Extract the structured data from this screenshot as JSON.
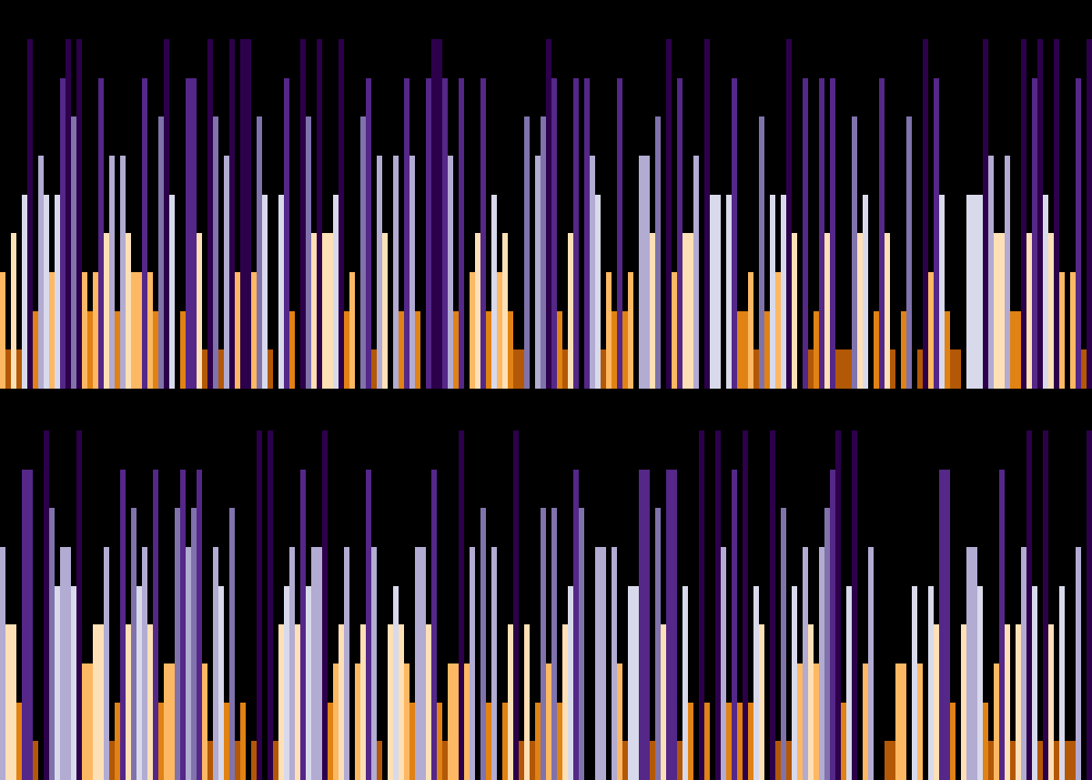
{
  "chart_data": {
    "type": "bar",
    "background": "#000000",
    "max_level": 9,
    "level_colors": [
      "#000000",
      "#b35806",
      "#e08214",
      "#fdb863",
      "#fee0b6",
      "#d8daeb",
      "#b2abd2",
      "#8073ac",
      "#542788",
      "#2d004b"
    ],
    "panels": [
      {
        "values": [
          3,
          1,
          4,
          1,
          5,
          9,
          2,
          6,
          5,
          3,
          5,
          8,
          9,
          7,
          9,
          3,
          2,
          3,
          8,
          4,
          6,
          2,
          6,
          4,
          3,
          3,
          8,
          3,
          2,
          7,
          9,
          5,
          0,
          2,
          8,
          8,
          4,
          1,
          9,
          7,
          1,
          6,
          9,
          3,
          9,
          9,
          3,
          7,
          5,
          1,
          0,
          5,
          8,
          2,
          0,
          9,
          7,
          4,
          9,
          4,
          4,
          5,
          9,
          2,
          3,
          0,
          7,
          8,
          1,
          6,
          4,
          0,
          6,
          2,
          8,
          6,
          2,
          0,
          8,
          9,
          9,
          8,
          6,
          2,
          8,
          0,
          3,
          4,
          8,
          2,
          5,
          3,
          4,
          2,
          1,
          1,
          7,
          0,
          6,
          7,
          9,
          8,
          2,
          1,
          4,
          8,
          0,
          8,
          6,
          5,
          1,
          3,
          2,
          8,
          2,
          3,
          0,
          6,
          6,
          4,
          7,
          0,
          9,
          3,
          8,
          4,
          4,
          6,
          0,
          9,
          5,
          5,
          0,
          5,
          8,
          2,
          2,
          3,
          1,
          7,
          2,
          5,
          3,
          5,
          9,
          4,
          0,
          8,
          1,
          2,
          8,
          4,
          8,
          1,
          1,
          1,
          7,
          4,
          5,
          0,
          2,
          8,
          4,
          1,
          0,
          2,
          7,
          0,
          1,
          9,
          3,
          8,
          5,
          2,
          1,
          1,
          0,
          5,
          5,
          5,
          9,
          6,
          4,
          4,
          6,
          2,
          2,
          9,
          4,
          8,
          9,
          5,
          4,
          9,
          3,
          0,
          3,
          8,
          1,
          9
        ]
      },
      {
        "values": [
          6,
          4,
          4,
          2,
          8,
          8,
          1,
          0,
          9,
          7,
          5,
          6,
          6,
          5,
          9,
          3,
          3,
          4,
          4,
          6,
          1,
          2,
          8,
          4,
          7,
          5,
          6,
          4,
          8,
          2,
          3,
          3,
          7,
          8,
          6,
          7,
          8,
          3,
          1,
          6,
          5,
          2,
          7,
          1,
          2,
          0,
          1,
          9,
          0,
          9,
          1,
          4,
          5,
          6,
          4,
          8,
          5,
          6,
          6,
          9,
          2,
          3,
          4,
          6,
          0,
          3,
          4,
          8,
          6,
          1,
          0,
          4,
          5,
          4,
          3,
          2,
          6,
          6,
          4,
          8,
          2,
          1,
          3,
          3,
          9,
          3,
          6,
          0,
          7,
          2,
          6,
          0,
          2,
          4,
          9,
          1,
          4,
          1,
          2,
          7,
          3,
          7,
          2,
          4,
          5,
          8,
          7,
          0,
          0,
          6,
          6,
          0,
          6,
          3,
          1,
          5,
          5,
          8,
          8,
          1,
          7,
          4,
          8,
          8,
          1,
          5,
          2,
          0,
          9,
          2,
          0,
          9,
          6,
          2,
          8,
          2,
          9,
          2,
          5,
          4,
          0,
          9,
          1,
          7,
          1,
          5,
          3,
          6,
          4,
          3,
          6,
          7,
          8,
          9,
          2,
          5,
          9,
          0,
          3,
          6,
          0,
          0,
          1,
          1,
          3,
          3,
          0,
          5,
          3,
          0,
          5,
          4,
          8,
          8,
          2,
          0,
          4,
          6,
          6,
          5,
          2,
          1,
          3,
          8,
          4,
          1,
          4,
          6,
          9,
          5,
          1,
          9,
          4,
          1,
          5,
          1,
          1,
          6,
          0,
          9
        ]
      }
    ]
  }
}
